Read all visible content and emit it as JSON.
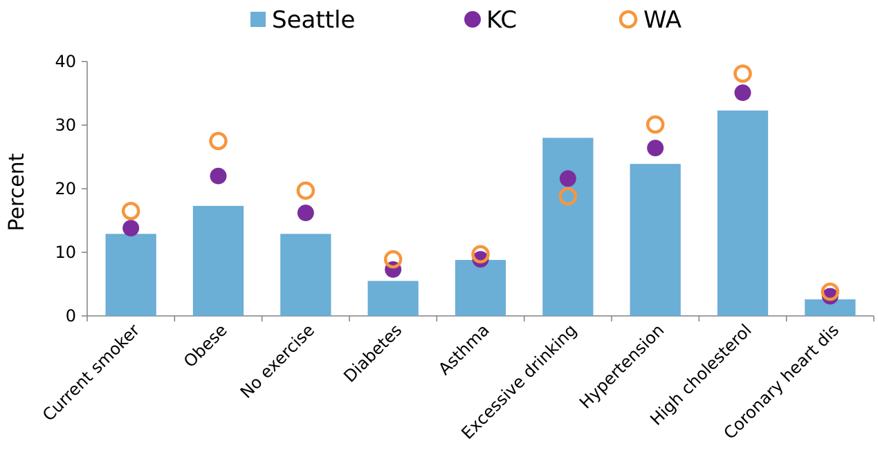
{
  "chart_data": {
    "type": "bar",
    "categories": [
      "Current smoker",
      "Obese",
      "No exercise",
      "Diabetes",
      "Asthma",
      "Excessive drinking",
      "Hypertension",
      "High cholesterol",
      "Coronary heart dis"
    ],
    "series": [
      {
        "name": "Seattle",
        "kind": "bar",
        "color": "#6BAED6",
        "values": [
          12.9,
          17.3,
          12.9,
          5.5,
          8.8,
          28.0,
          23.9,
          32.3,
          2.6
        ]
      },
      {
        "name": "KC",
        "kind": "marker-filled",
        "color": "#7B2D9E",
        "values": [
          13.8,
          22.0,
          16.2,
          7.3,
          8.9,
          21.6,
          26.4,
          35.1,
          3.1
        ]
      },
      {
        "name": "WA",
        "kind": "marker-hollow",
        "color": "#F7963C",
        "values": [
          16.5,
          27.5,
          19.7,
          8.9,
          9.7,
          18.8,
          30.1,
          38.1,
          3.8
        ]
      }
    ],
    "ylabel": "Percent",
    "xlabel": "",
    "ylim": [
      0,
      40
    ],
    "yticks": [
      0,
      10,
      20,
      30,
      40
    ],
    "legend_position": "top-center",
    "grid": false
  }
}
